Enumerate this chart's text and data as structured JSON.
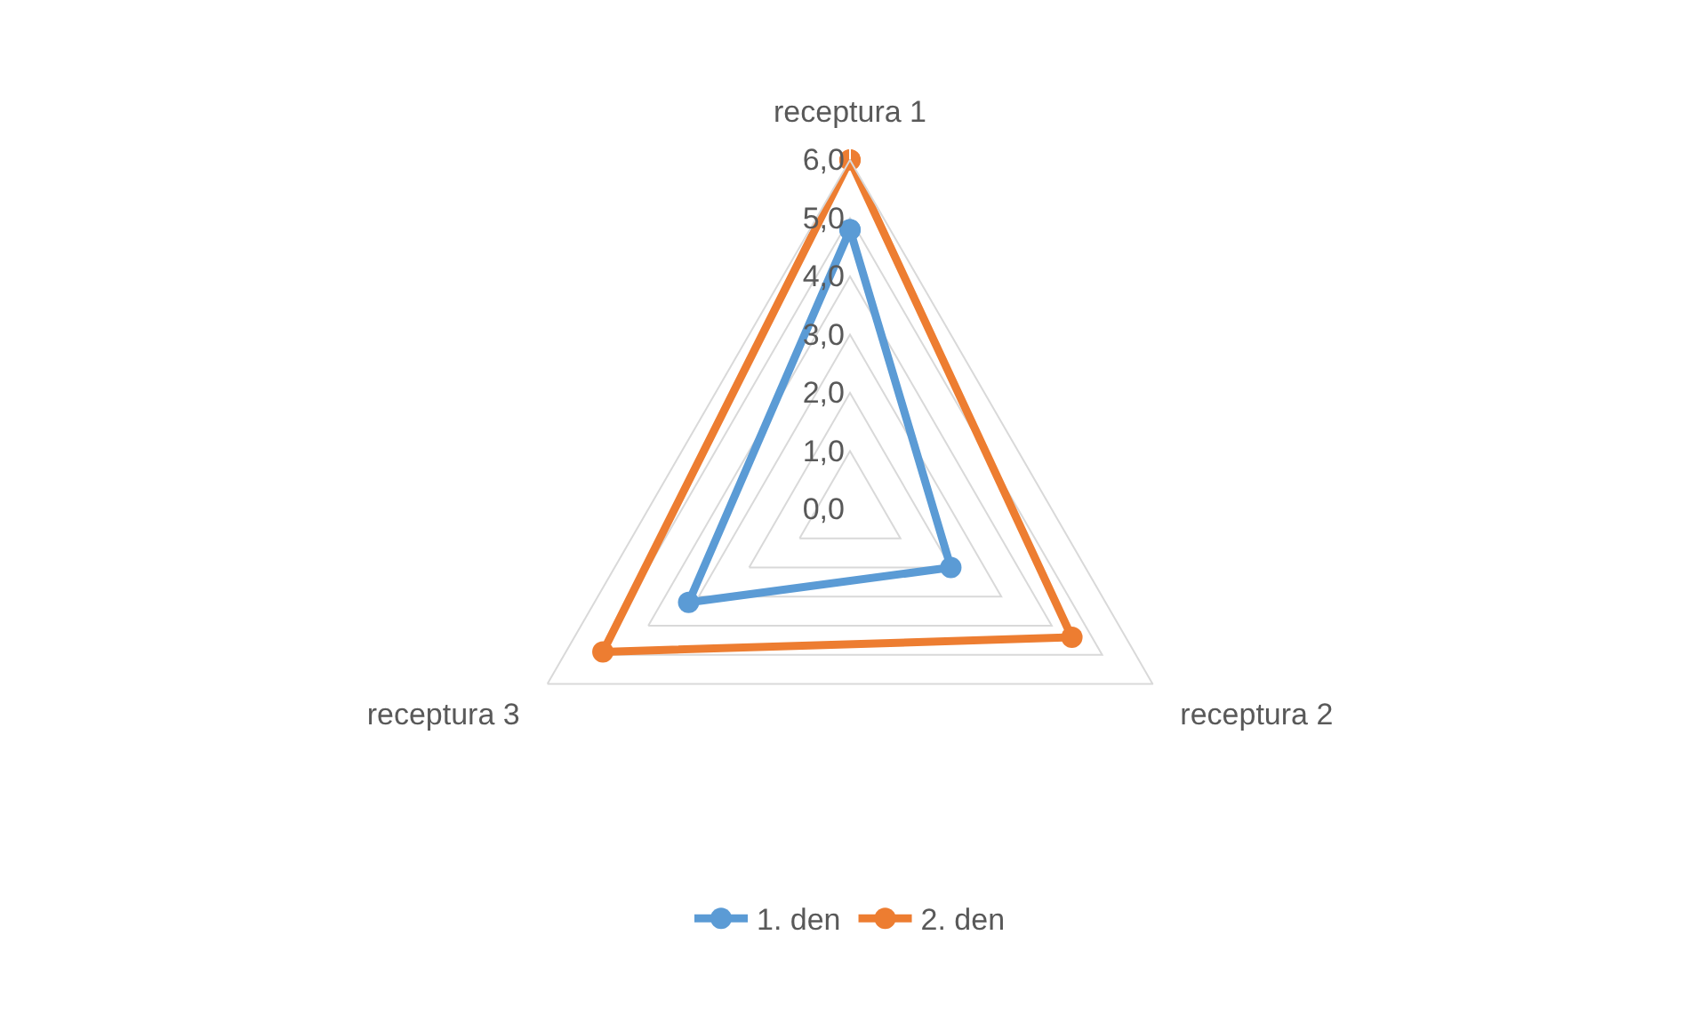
{
  "chart_data": {
    "type": "radar",
    "categories": [
      "receptura 1",
      "receptura 2",
      "receptura 3"
    ],
    "series": [
      {
        "name": "1. den",
        "color": "#5b9bd5",
        "values": [
          4.8,
          2.0,
          3.2
        ]
      },
      {
        "name": "2. den",
        "color": "#ed7d31",
        "values": [
          6.0,
          4.4,
          4.9
        ]
      }
    ],
    "ylim": [
      0,
      6
    ],
    "yticks": [
      {
        "value": 0,
        "label": "0,0"
      },
      {
        "value": 1,
        "label": "1,0"
      },
      {
        "value": 2,
        "label": "2,0"
      },
      {
        "value": 3,
        "label": "3,0"
      },
      {
        "value": 4,
        "label": "4,0"
      },
      {
        "value": 5,
        "label": "5,0"
      },
      {
        "value": 6,
        "label": "6,0"
      }
    ],
    "grid": true,
    "legend": "bottom",
    "marker": "circle",
    "line_style": "solid"
  }
}
